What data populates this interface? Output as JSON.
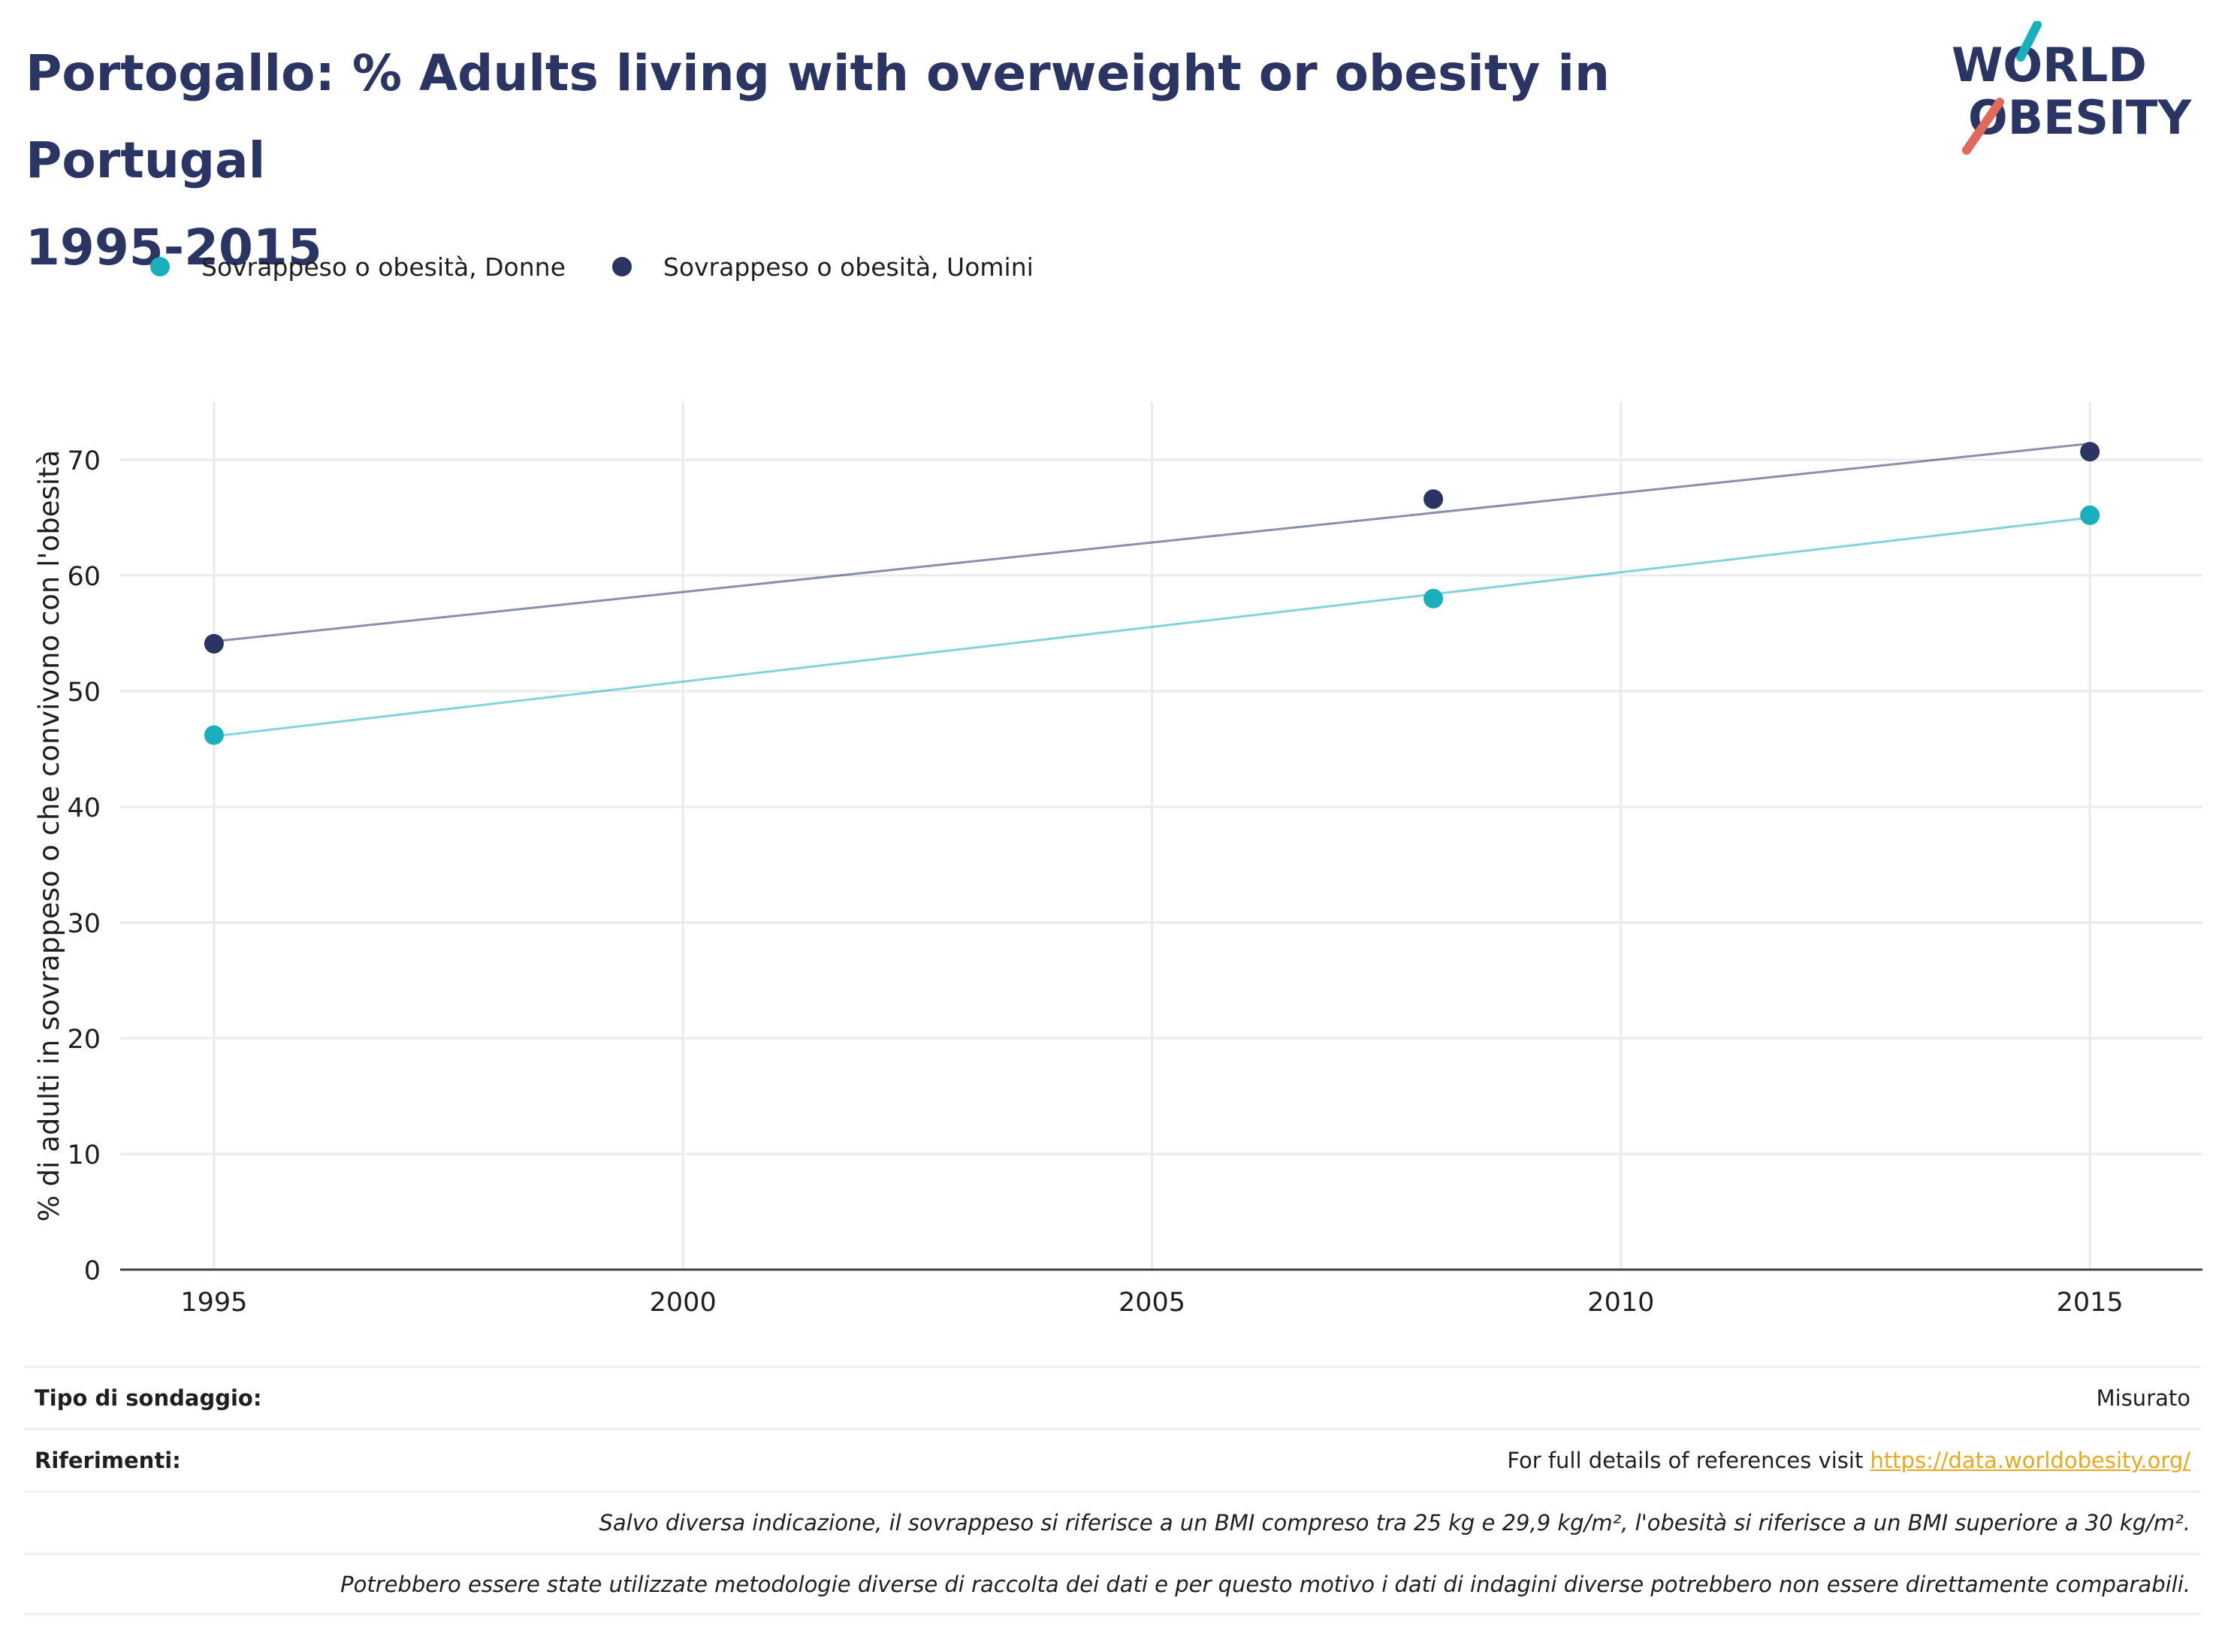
{
  "header": {
    "title_line1": "Portogallo: % Adults living with overweight or obesity in Portugal",
    "title_line2": "1995-2015"
  },
  "logo": {
    "line1": "WORLD",
    "line2": "OBESITY"
  },
  "colors": {
    "donne": "#19b0bd",
    "uomini": "#2a3563",
    "title": "#2a3563",
    "grid": "#ebebeb",
    "axis": "#444444",
    "link": "#e8a91c"
  },
  "chart_data": {
    "type": "scatter",
    "xlabel": "",
    "ylabel": "% di adulti in sovrappeso o che convivono con l'obesità",
    "xlim": [
      1994.0,
      2016.2
    ],
    "ylim": [
      0,
      75
    ],
    "x_ticks": [
      1995,
      2000,
      2005,
      2010,
      2015
    ],
    "y_ticks": [
      0,
      10,
      20,
      30,
      40,
      50,
      60,
      70
    ],
    "grid": true,
    "legend_position": "top-left",
    "series": [
      {
        "name": "Sovrappeso o obesità, Donne",
        "color": "#19b0bd",
        "x": [
          1995,
          2008,
          2015
        ],
        "y": [
          46.2,
          58.0,
          65.2
        ],
        "trendline": {
          "x": [
            1995,
            2015
          ],
          "y": [
            46.1,
            65.0
          ]
        }
      },
      {
        "name": "Sovrappeso o obesità, Uomini",
        "color": "#2a3563",
        "x": [
          1995,
          2008,
          2015
        ],
        "y": [
          54.1,
          66.6,
          70.7
        ],
        "trendline": {
          "x": [
            1995,
            2015
          ],
          "y": [
            54.3,
            71.4
          ]
        }
      }
    ]
  },
  "footer": {
    "survey_type_label": "Tipo di sondaggio:",
    "survey_type_value": "Misurato",
    "references_label": "Riferimenti:",
    "references_text": "For full details of references visit ",
    "references_link": "https://data.worldobesity.org/",
    "note1": "Salvo diversa indicazione, il sovrappeso si riferisce a un BMI compreso tra 25 kg e 29,9 kg/m², l'obesità si riferisce a un BMI superiore a 30 kg/m².",
    "note2": "Potrebbero essere state utilizzate metodologie diverse di raccolta dei dati e per questo motivo i dati di indagini diverse potrebbero non essere direttamente comparabili."
  }
}
